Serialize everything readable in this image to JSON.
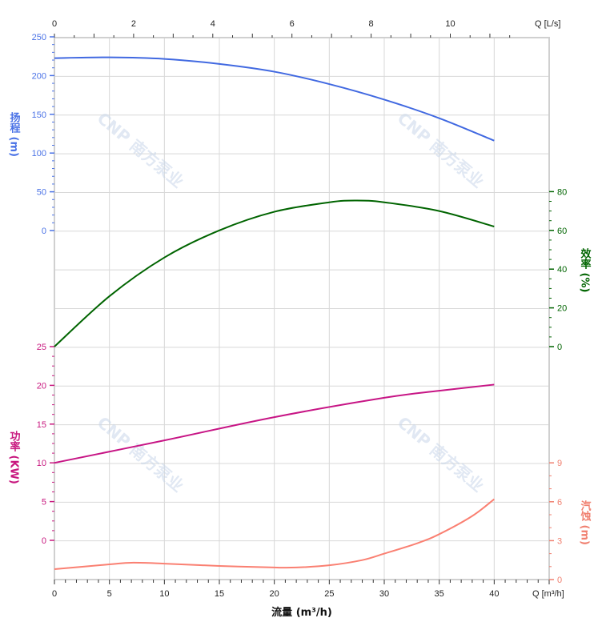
{
  "chart_data": {
    "type": "line",
    "xlabel": "流量 (m³/h)",
    "x_axis_bottom": {
      "unit_label": "Q [m³/h]",
      "range": [
        0,
        45
      ],
      "ticks": [
        0,
        5,
        10,
        15,
        20,
        25,
        30,
        35,
        40
      ]
    },
    "x_axis_top": {
      "unit_label": "Q [L/s]",
      "range": [
        0,
        12.5
      ],
      "ticks": [
        0,
        2,
        4,
        6,
        8,
        10
      ]
    },
    "grid": true,
    "axes": {
      "head": {
        "label": "扬程 (m)",
        "side": "left",
        "ticks": [
          0,
          50,
          100,
          150,
          200,
          250
        ],
        "color": "#4a72e6"
      },
      "power": {
        "label": "功率 (KW)",
        "side": "left",
        "ticks": [
          0,
          5,
          10,
          15,
          20,
          25
        ],
        "color": "#c8187f"
      },
      "efficiency": {
        "label": "效率 (%)",
        "side": "right",
        "ticks": [
          0,
          20,
          40,
          60,
          80
        ],
        "color": "#006400"
      },
      "npsh": {
        "label": "汽蚀 (m)",
        "side": "right",
        "ticks": [
          0,
          3,
          6,
          9
        ],
        "color": "#f08070"
      }
    },
    "series": [
      {
        "axis": "head",
        "color": "#4169e1",
        "x": [
          0,
          5,
          10,
          15,
          20,
          25,
          30,
          35,
          40
        ],
        "values": [
          222.5,
          223.5,
          221.5,
          215,
          205,
          189,
          169,
          145,
          116
        ]
      },
      {
        "axis": "efficiency",
        "color": "#006400",
        "x": [
          0,
          5,
          10,
          15,
          20,
          25,
          27.5,
          30,
          35,
          40
        ],
        "values": [
          0,
          26,
          46,
          60,
          69.6,
          74.5,
          75.4,
          74.5,
          70,
          62
        ]
      },
      {
        "axis": "power",
        "color": "#c71585",
        "x": [
          0,
          10,
          20,
          30,
          35,
          40
        ],
        "values": [
          10,
          12.9,
          15.9,
          18.4,
          19.3,
          20.1
        ]
      },
      {
        "axis": "npsh",
        "color": "#fa8072",
        "x": [
          0,
          5,
          7,
          10,
          15,
          20,
          22,
          25,
          28,
          30,
          33,
          35,
          38,
          40
        ],
        "values": [
          0.8,
          1.17,
          1.3,
          1.23,
          1.05,
          0.93,
          0.93,
          1.1,
          1.5,
          2.0,
          2.8,
          3.5,
          4.9,
          6.2
        ]
      }
    ],
    "watermark": "CNP 南方泵业"
  }
}
